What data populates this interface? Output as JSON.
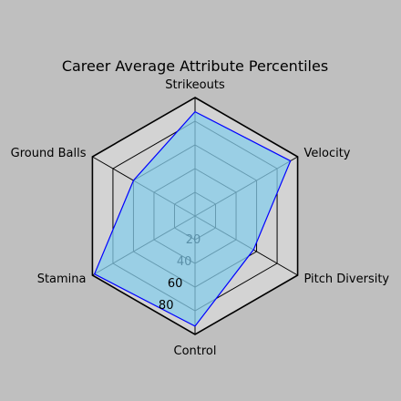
{
  "chart_data": {
    "type": "radar",
    "title": "Career Average Attribute Percentiles",
    "axes": [
      "Strikeouts",
      "Velocity",
      "Pitch Diversity",
      "Control",
      "Stamina",
      "Ground Balls"
    ],
    "series": [
      {
        "values": [
          88,
          93,
          57,
          93,
          98,
          60
        ]
      }
    ],
    "rlim": [
      0,
      100
    ],
    "rticks": [
      20,
      40,
      60,
      80
    ],
    "grid": true,
    "colors": {
      "background": "#bfbfbf",
      "plot_area": "#d3d3d3",
      "fill": "#87ceeb",
      "line": "#0000ff",
      "grid": "#000000",
      "tick_inner": "#5a8fa8",
      "tick_outer": "#000000"
    }
  }
}
